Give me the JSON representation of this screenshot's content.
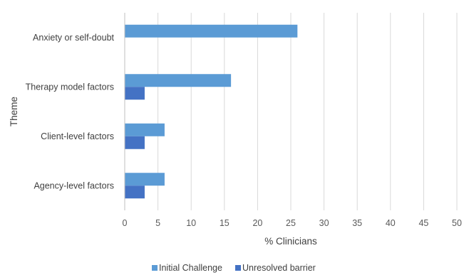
{
  "chart_data": {
    "type": "bar",
    "orientation": "horizontal",
    "categories": [
      "Anxiety or self-doubt",
      "Therapy model factors",
      "Client-level factors",
      "Agency-level factors"
    ],
    "series": [
      {
        "name": "Initial Challenge",
        "color": "#5b9bd5",
        "values": [
          26,
          16,
          6,
          6
        ]
      },
      {
        "name": "Unresolved barrier",
        "color": "#4472c4",
        "values": [
          null,
          3,
          3,
          3
        ]
      }
    ],
    "xlabel": "% Clinicians",
    "ylabel": "Theme",
    "xlim": [
      0,
      50
    ],
    "xticks": [
      0,
      5,
      10,
      15,
      20,
      25,
      30,
      35,
      40,
      45,
      50
    ],
    "grid": true,
    "legend_position": "bottom"
  }
}
